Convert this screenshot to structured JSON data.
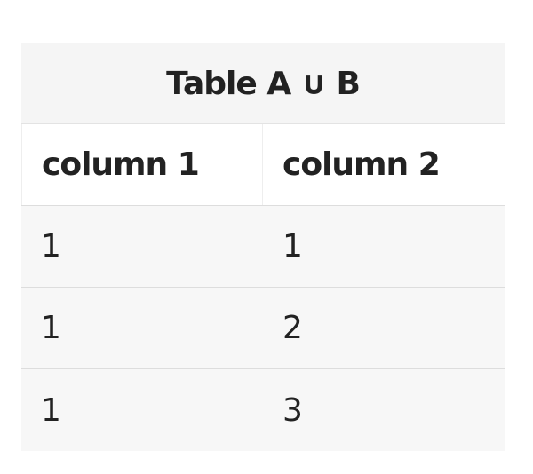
{
  "table": {
    "caption": "Table A ∪ B",
    "headers": [
      "column 1",
      "column 2"
    ],
    "rows": [
      [
        "1",
        "1"
      ],
      [
        "1",
        "2"
      ],
      [
        "1",
        "3"
      ]
    ]
  },
  "colors": {
    "caption_bg": "#f5f5f5",
    "row_bg": "#f7f7f7",
    "border": "#dddddd",
    "text": "#222222"
  }
}
